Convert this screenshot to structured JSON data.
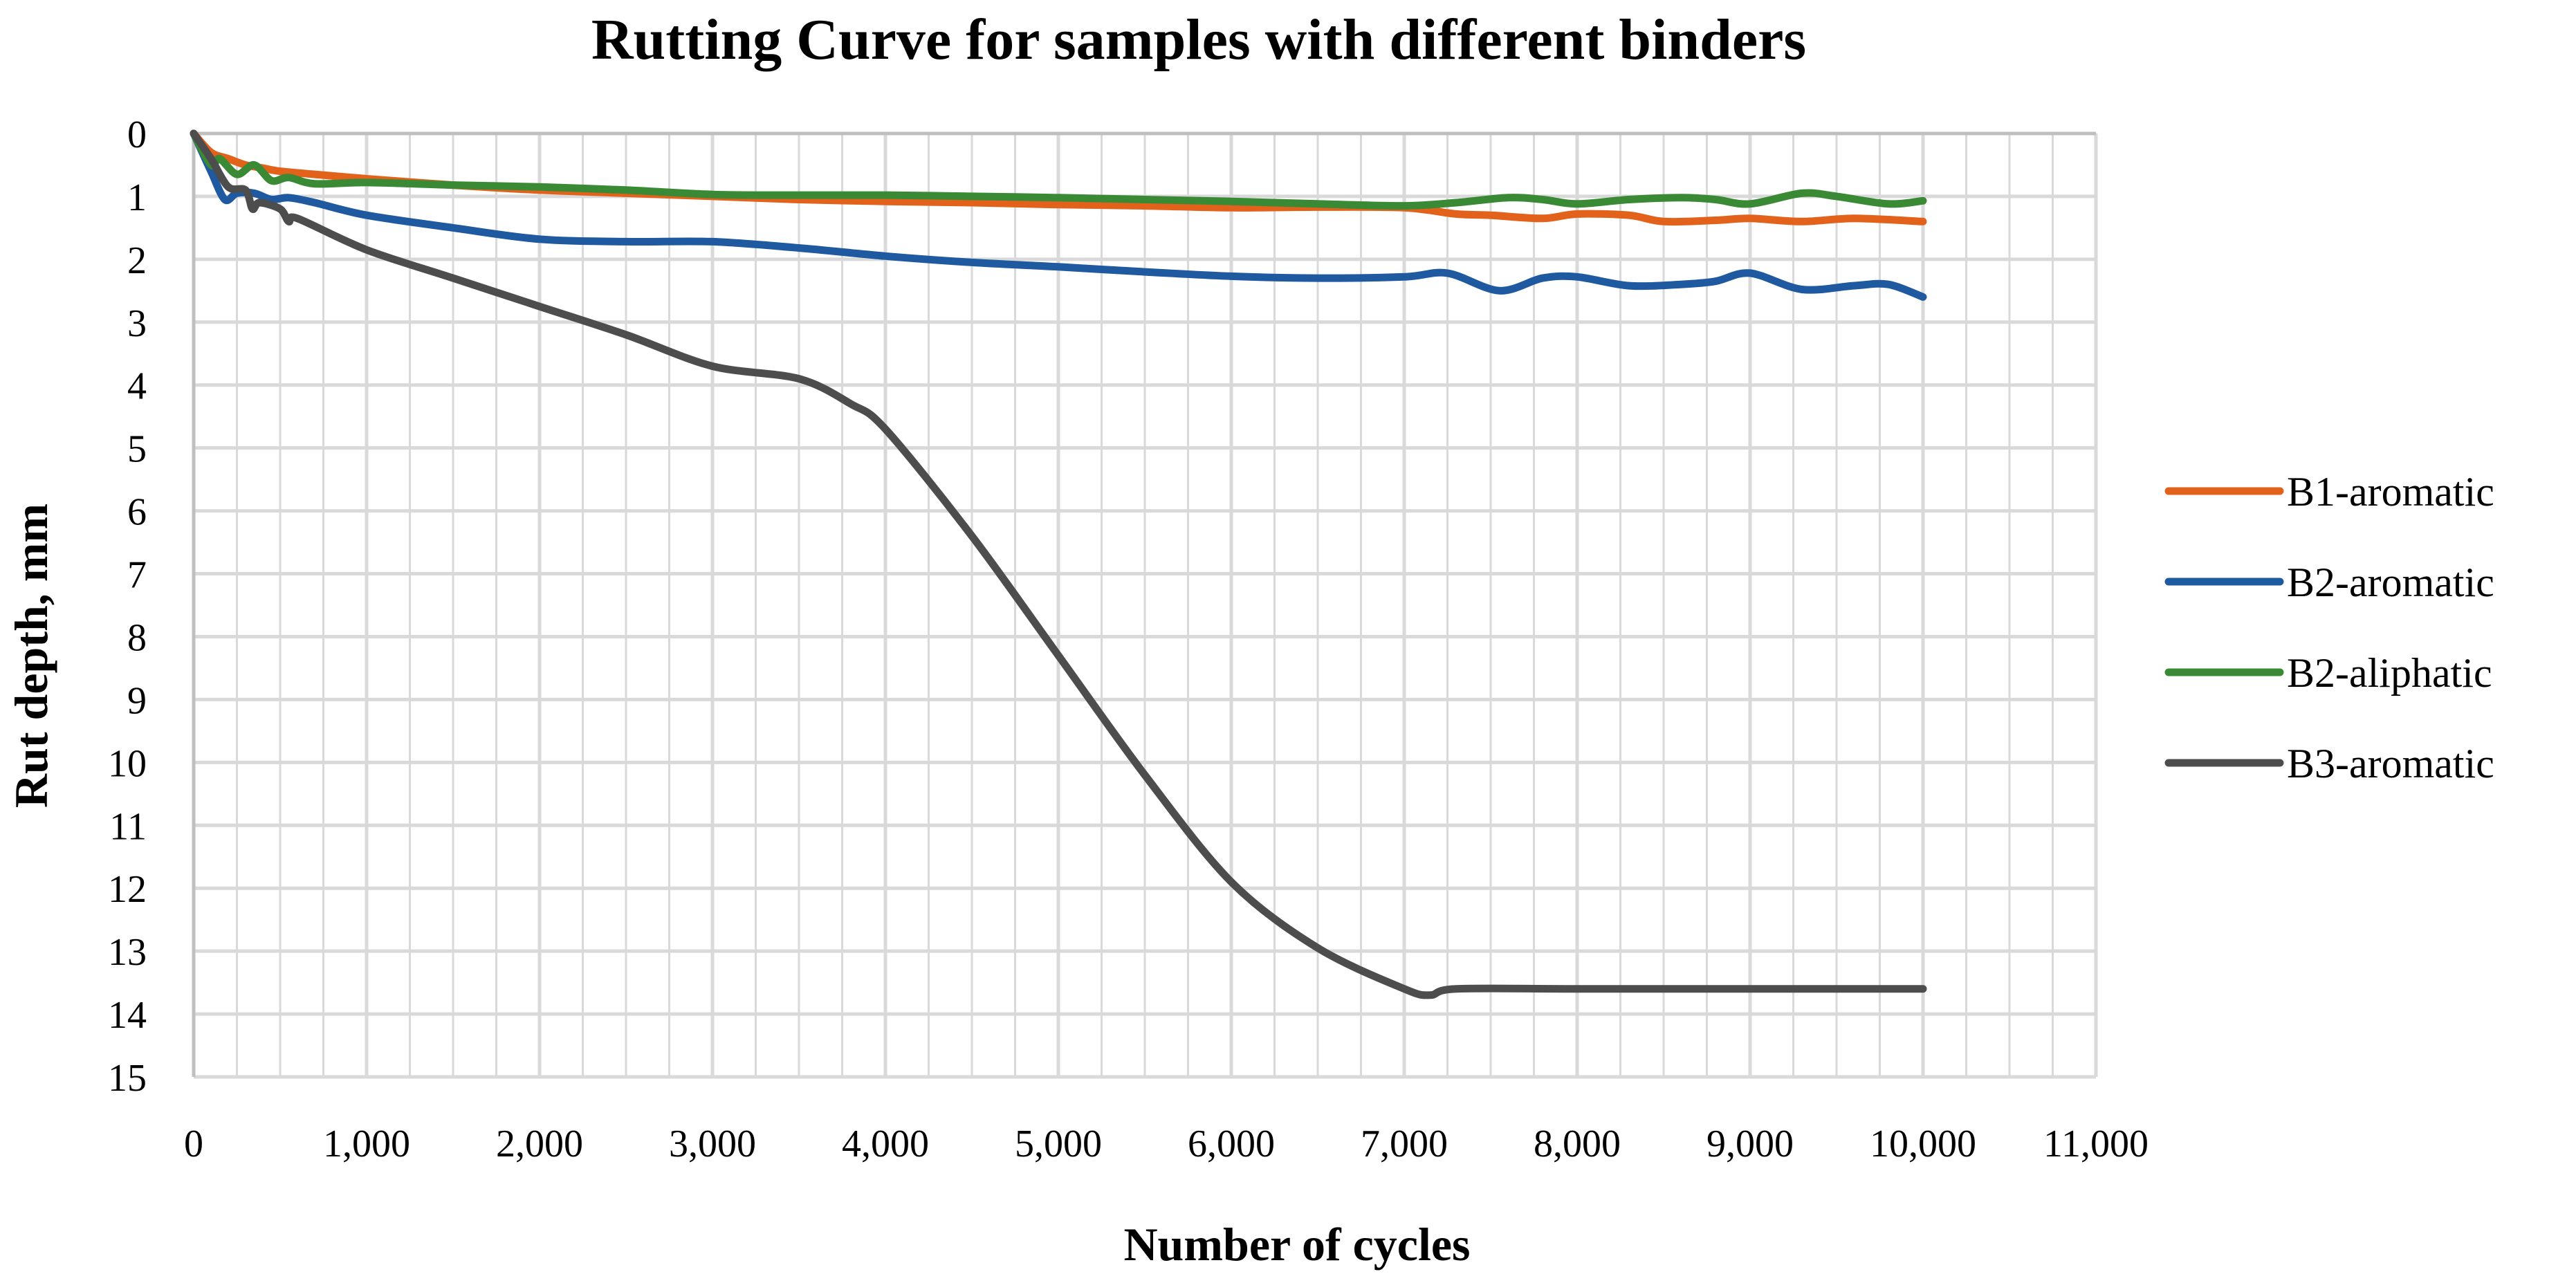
{
  "chart_data": {
    "type": "line",
    "title": "Rutting Curve for samples with different binders",
    "xlabel": "Number of cycles",
    "ylabel": "Rut depth, mm",
    "xlim": [
      0,
      11000
    ],
    "ylim": [
      0,
      15
    ],
    "y_inverted": true,
    "grid": true,
    "legend_position": "right",
    "x_ticks": [
      0,
      1000,
      2000,
      3000,
      4000,
      5000,
      6000,
      7000,
      8000,
      9000,
      10000,
      11000
    ],
    "x_tick_labels": [
      "0",
      "1,000",
      "2,000",
      "3,000",
      "4,000",
      "5,000",
      "6,000",
      "7,000",
      "8,000",
      "9,000",
      "10,000",
      "11,000"
    ],
    "y_ticks": [
      0,
      1,
      2,
      3,
      4,
      5,
      6,
      7,
      8,
      9,
      10,
      11,
      12,
      13,
      14,
      15
    ],
    "y_tick_labels": [
      "0",
      "1",
      "2",
      "3",
      "4",
      "5",
      "6",
      "7",
      "8",
      "9",
      "10",
      "11",
      "12",
      "13",
      "14",
      "15"
    ],
    "series": [
      {
        "name": "B1-aromatic",
        "color": "#e2621b",
        "points": [
          [
            0,
            0
          ],
          [
            100,
            0.3
          ],
          [
            200,
            0.4
          ],
          [
            300,
            0.5
          ],
          [
            400,
            0.55
          ],
          [
            500,
            0.6
          ],
          [
            700,
            0.65
          ],
          [
            1000,
            0.72
          ],
          [
            1500,
            0.82
          ],
          [
            2000,
            0.9
          ],
          [
            2500,
            0.95
          ],
          [
            3000,
            1.0
          ],
          [
            3500,
            1.05
          ],
          [
            4000,
            1.08
          ],
          [
            4500,
            1.1
          ],
          [
            5000,
            1.13
          ],
          [
            5500,
            1.15
          ],
          [
            6000,
            1.18
          ],
          [
            6500,
            1.17
          ],
          [
            7000,
            1.18
          ],
          [
            7300,
            1.28
          ],
          [
            7500,
            1.3
          ],
          [
            7800,
            1.35
          ],
          [
            8000,
            1.28
          ],
          [
            8300,
            1.3
          ],
          [
            8500,
            1.4
          ],
          [
            8800,
            1.38
          ],
          [
            9000,
            1.35
          ],
          [
            9300,
            1.4
          ],
          [
            9600,
            1.35
          ],
          [
            10000,
            1.4
          ]
        ]
      },
      {
        "name": "B2-aromatic",
        "color": "#1f5aa0",
        "points": [
          [
            0,
            0
          ],
          [
            100,
            0.6
          ],
          [
            180,
            1.05
          ],
          [
            250,
            0.95
          ],
          [
            350,
            0.95
          ],
          [
            450,
            1.05
          ],
          [
            550,
            1.02
          ],
          [
            700,
            1.1
          ],
          [
            1000,
            1.3
          ],
          [
            1500,
            1.5
          ],
          [
            2000,
            1.68
          ],
          [
            2500,
            1.72
          ],
          [
            3000,
            1.72
          ],
          [
            3500,
            1.82
          ],
          [
            4000,
            1.95
          ],
          [
            4500,
            2.05
          ],
          [
            5000,
            2.12
          ],
          [
            5500,
            2.2
          ],
          [
            6000,
            2.27
          ],
          [
            6500,
            2.3
          ],
          [
            7000,
            2.28
          ],
          [
            7250,
            2.22
          ],
          [
            7550,
            2.5
          ],
          [
            7800,
            2.3
          ],
          [
            8000,
            2.28
          ],
          [
            8300,
            2.42
          ],
          [
            8600,
            2.4
          ],
          [
            8800,
            2.35
          ],
          [
            9000,
            2.22
          ],
          [
            9300,
            2.48
          ],
          [
            9600,
            2.42
          ],
          [
            9800,
            2.4
          ],
          [
            10000,
            2.6
          ]
        ]
      },
      {
        "name": "B2-aliphatic",
        "color": "#3a8a35",
        "points": [
          [
            0,
            0
          ],
          [
            100,
            0.5
          ],
          [
            150,
            0.4
          ],
          [
            250,
            0.65
          ],
          [
            350,
            0.5
          ],
          [
            450,
            0.75
          ],
          [
            550,
            0.7
          ],
          [
            700,
            0.8
          ],
          [
            1000,
            0.78
          ],
          [
            1500,
            0.82
          ],
          [
            2000,
            0.85
          ],
          [
            2500,
            0.9
          ],
          [
            3000,
            0.97
          ],
          [
            3500,
            0.98
          ],
          [
            4000,
            0.98
          ],
          [
            4500,
            1.0
          ],
          [
            5000,
            1.02
          ],
          [
            5500,
            1.05
          ],
          [
            6000,
            1.08
          ],
          [
            6500,
            1.12
          ],
          [
            7000,
            1.15
          ],
          [
            7300,
            1.1
          ],
          [
            7600,
            1.02
          ],
          [
            7800,
            1.05
          ],
          [
            8000,
            1.12
          ],
          [
            8300,
            1.05
          ],
          [
            8600,
            1.02
          ],
          [
            8800,
            1.05
          ],
          [
            9000,
            1.12
          ],
          [
            9300,
            0.95
          ],
          [
            9500,
            1.0
          ],
          [
            9800,
            1.12
          ],
          [
            10000,
            1.07
          ]
        ]
      },
      {
        "name": "B3-aromatic",
        "color": "#4d4d4d",
        "points": [
          [
            0,
            0
          ],
          [
            100,
            0.4
          ],
          [
            200,
            0.85
          ],
          [
            300,
            0.9
          ],
          [
            340,
            1.2
          ],
          [
            380,
            1.1
          ],
          [
            500,
            1.2
          ],
          [
            550,
            1.4
          ],
          [
            600,
            1.35
          ],
          [
            1000,
            1.85
          ],
          [
            1500,
            2.3
          ],
          [
            2000,
            2.75
          ],
          [
            2500,
            3.2
          ],
          [
            3000,
            3.7
          ],
          [
            3500,
            3.9
          ],
          [
            3800,
            4.3
          ],
          [
            4000,
            4.7
          ],
          [
            4500,
            6.4
          ],
          [
            5000,
            8.3
          ],
          [
            5500,
            10.2
          ],
          [
            6000,
            11.9
          ],
          [
            6500,
            12.95
          ],
          [
            7000,
            13.6
          ],
          [
            7150,
            13.7
          ],
          [
            7300,
            13.6
          ],
          [
            8000,
            13.6
          ],
          [
            9000,
            13.6
          ],
          [
            10000,
            13.6
          ]
        ]
      }
    ]
  }
}
